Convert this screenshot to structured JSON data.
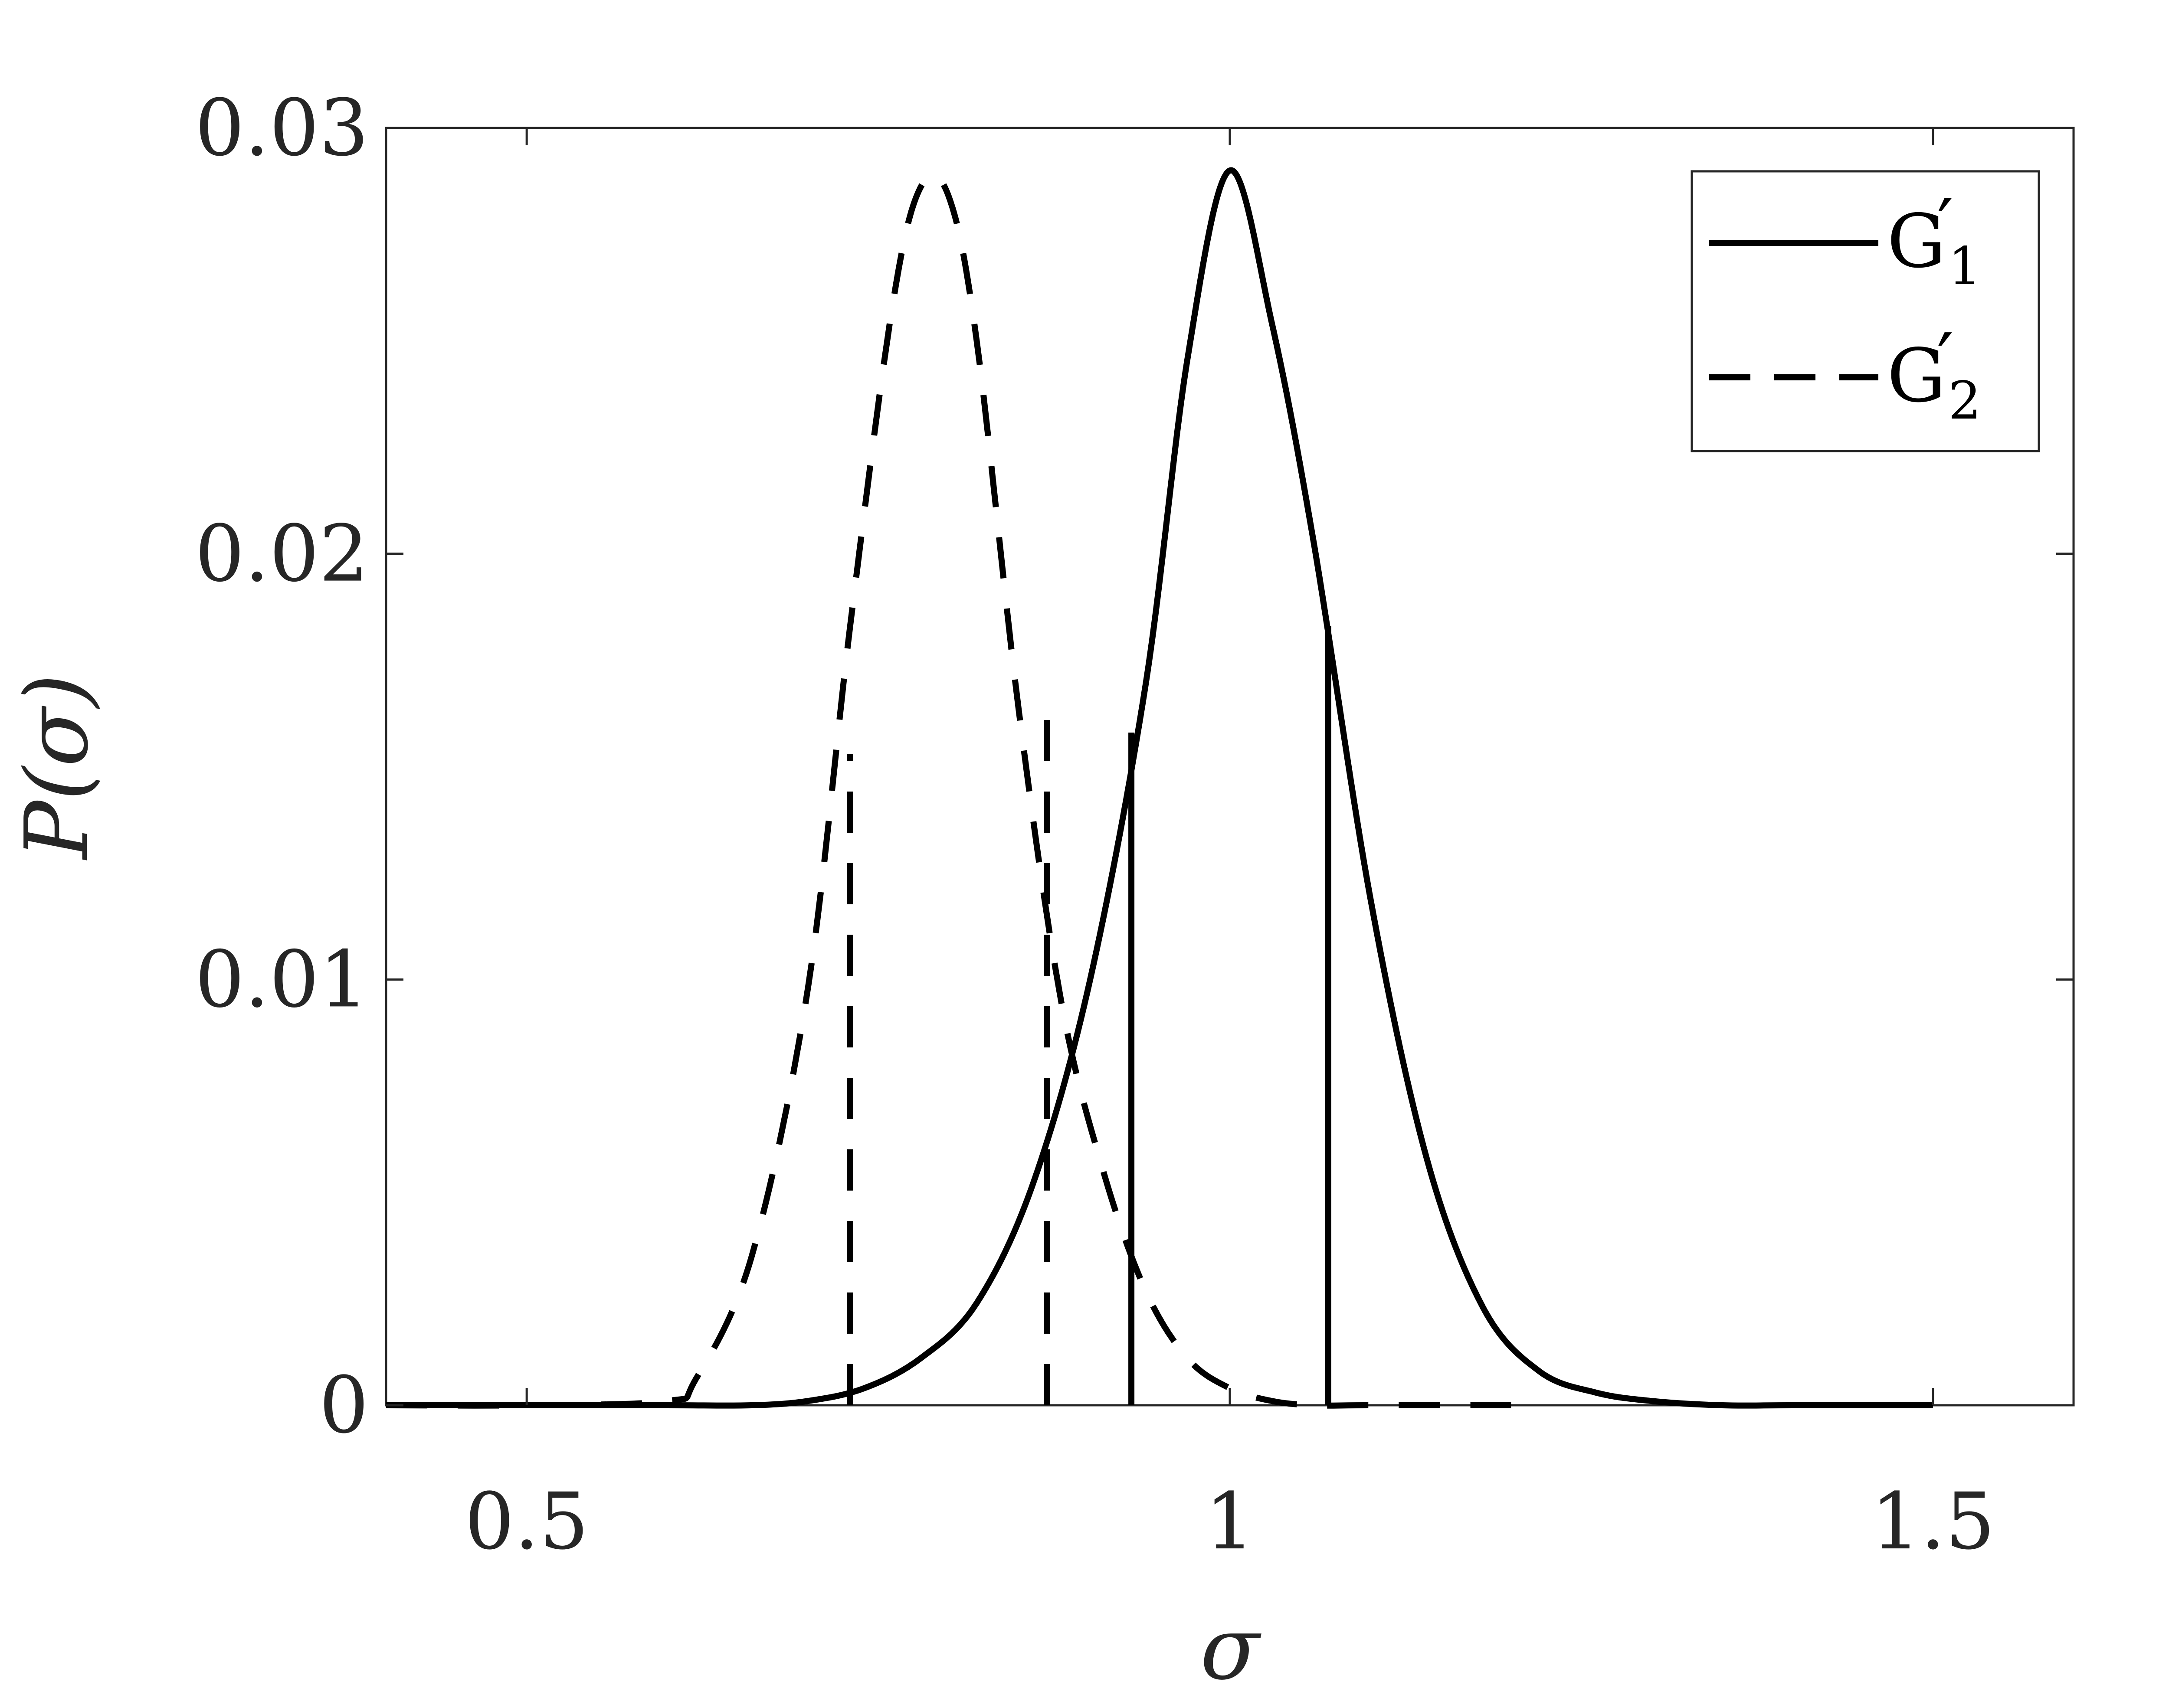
{
  "chart_data": {
    "type": "line",
    "xlabel": "σ",
    "ylabel": "P(σ)",
    "xlim": [
      0.4,
      1.6
    ],
    "ylim": [
      0,
      0.03
    ],
    "xticks": [
      0.5,
      1,
      1.5
    ],
    "xtick_labels": [
      "0.5",
      "1",
      "1.5"
    ],
    "yticks": [
      0,
      0.01,
      0.02,
      0.03
    ],
    "ytick_labels": [
      "0",
      "0.01",
      "0.02",
      "0.03"
    ],
    "grid": false,
    "legend_position": "top-right",
    "series": [
      {
        "name": "G′₁",
        "legend_main": "G",
        "legend_sub": "1",
        "style": "solid",
        "color": "#000000",
        "x": [
          0.4,
          0.5,
          0.6,
          0.66,
          0.7,
          0.74,
          0.78,
          0.82,
          0.86,
          0.9,
          0.94,
          0.97,
          1.0,
          1.03,
          1.06,
          1.1,
          1.14,
          1.18,
          1.22,
          1.26,
          1.3,
          1.35,
          1.4,
          1.5
        ],
        "y": [
          0,
          0,
          0,
          0,
          0.0001,
          0.0004,
          0.0011,
          0.0024,
          0.0052,
          0.0099,
          0.0169,
          0.0246,
          0.029,
          0.0254,
          0.0202,
          0.0119,
          0.0058,
          0.0023,
          0.0008,
          0.0003,
          0.0001,
          0,
          0,
          0
        ],
        "bounds": [
          {
            "x": 0.93,
            "y": 0.0158
          },
          {
            "x": 1.07,
            "y": 0.0183
          }
        ]
      },
      {
        "name": "G′₂",
        "legend_main": "G",
        "legend_sub": "2",
        "style": "dashed",
        "color": "#000000",
        "x": [
          0.4,
          0.5,
          0.6,
          0.62,
          0.66,
          0.7,
          0.73,
          0.76,
          0.78,
          0.8,
          0.82,
          0.85,
          0.88,
          0.91,
          0.94,
          0.97,
          1.0,
          1.03,
          1.06,
          1.1,
          1.2
        ],
        "y": [
          0,
          0,
          0.0001,
          0.0006,
          0.0035,
          0.0098,
          0.0183,
          0.0258,
          0.0286,
          0.0284,
          0.025,
          0.0163,
          0.0095,
          0.0055,
          0.0027,
          0.0011,
          0.0004,
          0.0001,
          0,
          0,
          0
        ],
        "bounds": [
          {
            "x": 0.73,
            "y": 0.0153
          },
          {
            "x": 0.87,
            "y": 0.0168
          }
        ]
      }
    ]
  }
}
